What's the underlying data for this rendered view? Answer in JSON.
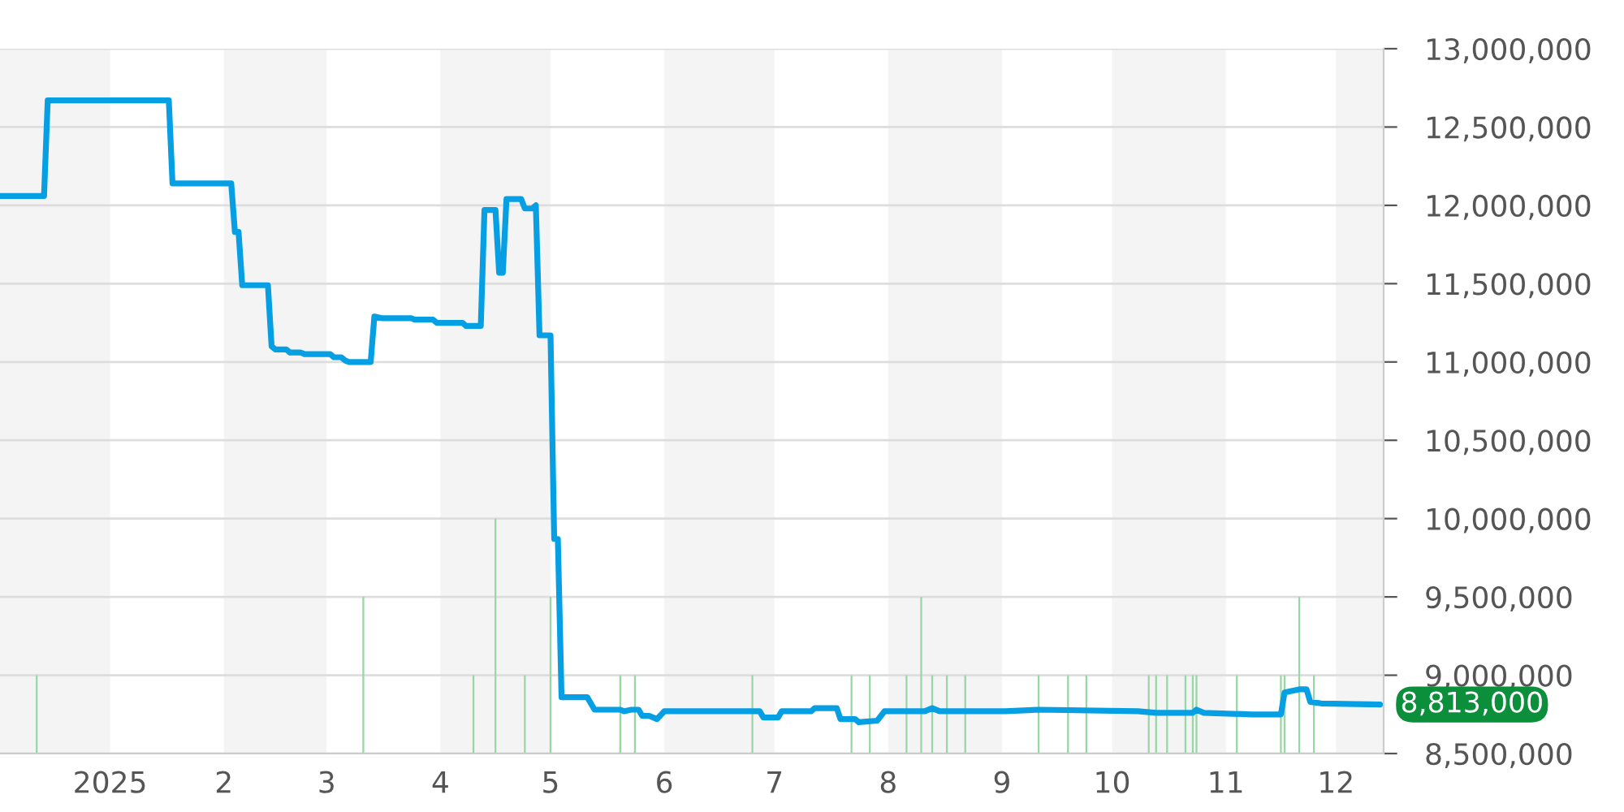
{
  "chart_data": {
    "type": "line",
    "xlim": [
      "2024-12-02",
      "2025-12-14"
    ],
    "xticks": [
      {
        "value": "2025-01-01",
        "label": "2025"
      },
      {
        "value": "2025-02-01",
        "label": "2"
      },
      {
        "value": "2025-03-01",
        "label": "3"
      },
      {
        "value": "2025-04-01",
        "label": "4"
      },
      {
        "value": "2025-05-01",
        "label": "5"
      },
      {
        "value": "2025-06-01",
        "label": "6"
      },
      {
        "value": "2025-07-01",
        "label": "7"
      },
      {
        "value": "2025-08-01",
        "label": "8"
      },
      {
        "value": "2025-09-01",
        "label": "9"
      },
      {
        "value": "2025-10-01",
        "label": "10"
      },
      {
        "value": "2025-11-01",
        "label": "11"
      },
      {
        "value": "2025-12-01",
        "label": "12"
      }
    ],
    "ylim": [
      8500000,
      13000000
    ],
    "yticks": [
      {
        "value": 8500000,
        "label": "8,500,000"
      },
      {
        "value": 9000000,
        "label": "9,000,000"
      },
      {
        "value": 9500000,
        "label": "9,500,000"
      },
      {
        "value": 10000000,
        "label": "10,000,000"
      },
      {
        "value": 10500000,
        "label": "10,500,000"
      },
      {
        "value": 11000000,
        "label": "11,000,000"
      },
      {
        "value": 11500000,
        "label": "11,500,000"
      },
      {
        "value": 12000000,
        "label": "12,000,000"
      },
      {
        "value": 12500000,
        "label": "12,500,000"
      },
      {
        "value": 13000000,
        "label": "13,000,000"
      }
    ],
    "grid": "y",
    "legend": false,
    "marker": "none",
    "line_style": "solid",
    "bands": [
      {
        "axis": "x",
        "from": "2024-12-02",
        "to": "2025-01-01",
        "color": "#f4f4f4"
      },
      {
        "axis": "x",
        "from": "2025-02-01",
        "to": "2025-03-01",
        "color": "#f4f4f4"
      },
      {
        "axis": "x",
        "from": "2025-04-01",
        "to": "2025-05-01",
        "color": "#f4f4f4"
      },
      {
        "axis": "x",
        "from": "2025-06-01",
        "to": "2025-07-01",
        "color": "#f4f4f4"
      },
      {
        "axis": "x",
        "from": "2025-08-01",
        "to": "2025-09-01",
        "color": "#f4f4f4"
      },
      {
        "axis": "x",
        "from": "2025-10-01",
        "to": "2025-11-01",
        "color": "#f4f4f4"
      },
      {
        "axis": "x",
        "from": "2025-12-01",
        "to": "2025-12-14",
        "color": "#f4f4f4"
      }
    ],
    "annotations": [
      {
        "text": "8,813,000",
        "x": "2025-12-13",
        "y": 8813000
      }
    ],
    "series": [
      {
        "type": "bar",
        "color": "#98d6a6",
        "x": [
          "2024-12-12",
          "2025-03-11",
          "2025-04-10",
          "2025-04-16",
          "2025-04-24",
          "2025-05-01",
          "2025-05-20",
          "2025-05-24",
          "2025-06-25",
          "2025-07-22",
          "2025-07-27",
          "2025-08-06",
          "2025-08-10",
          "2025-08-13",
          "2025-08-17",
          "2025-08-22",
          "2025-09-11",
          "2025-09-19",
          "2025-09-24",
          "2025-10-11",
          "2025-10-13",
          "2025-10-16",
          "2025-10-21",
          "2025-10-23",
          "2025-10-24",
          "2025-11-04",
          "2025-11-16",
          "2025-11-17",
          "2025-11-21",
          "2025-11-25"
        ],
        "base": [
          8500000,
          8500000,
          8500000,
          8500000,
          8500000,
          8500000,
          8500000,
          8500000,
          8500000,
          8500000,
          8500000,
          8500000,
          8500000,
          8500000,
          8500000,
          8500000,
          8500000,
          8500000,
          8500000,
          8500000,
          8500000,
          8500000,
          8500000,
          8500000,
          8500000,
          8500000,
          8500000,
          8500000,
          8500000,
          8500000
        ],
        "values": [
          500000,
          1000000,
          500000,
          1500000,
          500000,
          1000000,
          500000,
          500000,
          500000,
          500000,
          500000,
          500000,
          1000000,
          500000,
          500000,
          500000,
          500000,
          500000,
          500000,
          500000,
          500000,
          500000,
          500000,
          500000,
          500000,
          500000,
          500000,
          500000,
          1000000,
          500000
        ]
      },
      {
        "color": "#079fe3",
        "x": [
          "2024-12-02",
          "2024-12-14",
          "2024-12-15",
          "2025-01-17",
          "2025-01-18",
          "2025-02-03",
          "2025-02-04",
          "2025-02-05",
          "2025-02-06",
          "2025-02-13",
          "2025-02-14",
          "2025-02-15",
          "2025-02-18",
          "2025-02-19",
          "2025-02-22",
          "2025-02-23",
          "2025-03-02",
          "2025-03-03",
          "2025-03-05",
          "2025-03-06",
          "2025-03-07",
          "2025-03-13",
          "2025-03-14",
          "2025-03-16",
          "2025-03-24",
          "2025-03-25",
          "2025-03-30",
          "2025-03-31",
          "2025-04-07",
          "2025-04-08",
          "2025-04-12",
          "2025-04-13",
          "2025-04-16",
          "2025-04-17",
          "2025-04-18",
          "2025-04-19",
          "2025-04-23",
          "2025-04-24",
          "2025-04-26",
          "2025-04-27",
          "2025-04-28",
          "2025-05-01",
          "2025-05-02",
          "2025-05-03",
          "2025-05-04",
          "2025-05-11",
          "2025-05-13",
          "2025-05-20",
          "2025-05-21",
          "2025-05-23",
          "2025-05-25",
          "2025-05-26",
          "2025-05-28",
          "2025-05-30",
          "2025-06-01",
          "2025-06-27",
          "2025-06-28",
          "2025-07-02",
          "2025-07-03",
          "2025-07-11",
          "2025-07-12",
          "2025-07-18",
          "2025-07-19",
          "2025-07-23",
          "2025-07-24",
          "2025-07-29",
          "2025-07-31",
          "2025-08-11",
          "2025-08-13",
          "2025-08-15",
          "2025-09-02",
          "2025-09-11",
          "2025-10-08",
          "2025-10-13",
          "2025-10-23",
          "2025-10-24",
          "2025-10-26",
          "2025-11-08",
          "2025-11-16",
          "2025-11-17",
          "2025-11-21",
          "2025-11-23",
          "2025-11-24",
          "2025-11-27",
          "2025-12-13"
        ],
        "values": [
          12060000,
          12060000,
          12670000,
          12670000,
          12140000,
          12140000,
          11830000,
          11830000,
          11490000,
          11490000,
          11100000,
          11080000,
          11080000,
          11060000,
          11060000,
          11050000,
          11050000,
          11030000,
          11030000,
          11010000,
          11000000,
          11000000,
          11290000,
          11280000,
          11280000,
          11270000,
          11270000,
          11250000,
          11250000,
          11230000,
          11230000,
          11970000,
          11970000,
          11570000,
          11570000,
          12040000,
          12040000,
          11980000,
          11980000,
          12000000,
          11170000,
          11170000,
          9870000,
          9870000,
          8860000,
          8860000,
          8780000,
          8780000,
          8770000,
          8780000,
          8780000,
          8740000,
          8740000,
          8720000,
          8770000,
          8770000,
          8730000,
          8730000,
          8770000,
          8770000,
          8790000,
          8790000,
          8720000,
          8720000,
          8700000,
          8710000,
          8770000,
          8770000,
          8790000,
          8770000,
          8770000,
          8780000,
          8770000,
          8760000,
          8760000,
          8780000,
          8760000,
          8750000,
          8750000,
          8890000,
          8910000,
          8910000,
          8830000,
          8820000,
          8813000
        ]
      }
    ]
  }
}
